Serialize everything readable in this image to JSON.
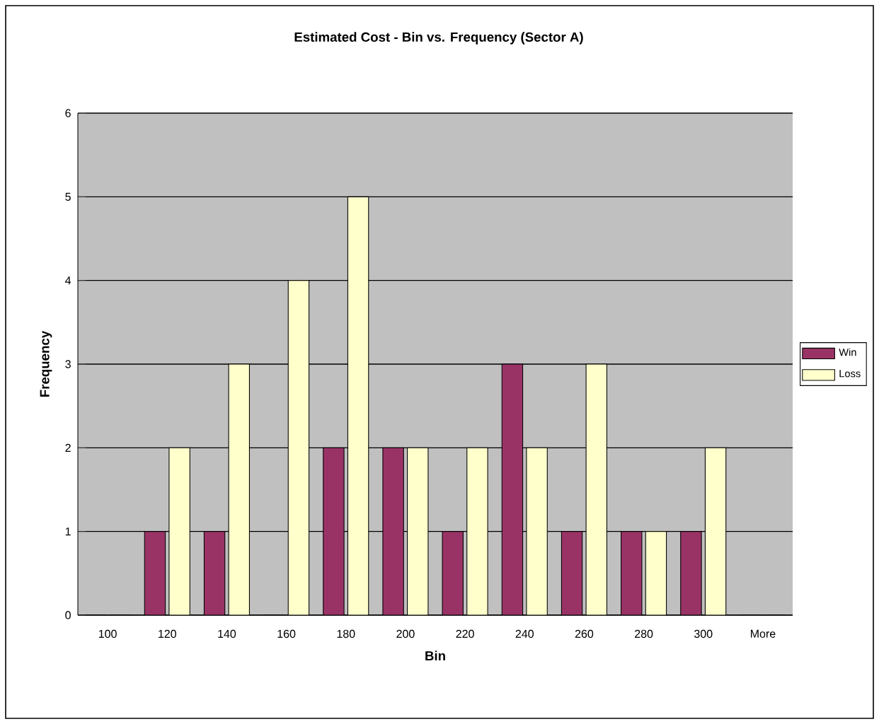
{
  "chart_data": {
    "type": "bar",
    "title": "Estimated Cost - Bin vs. Frequency (Sector A)",
    "xlabel": "Bin",
    "ylabel": "Frequency",
    "categories": [
      "100",
      "120",
      "140",
      "160",
      "180",
      "200",
      "220",
      "240",
      "260",
      "280",
      "300",
      "More"
    ],
    "series": [
      {
        "name": "Win",
        "color": "#993366",
        "values": [
          0,
          1,
          1,
          0,
          2,
          2,
          1,
          3,
          1,
          1,
          1,
          0
        ]
      },
      {
        "name": "Loss",
        "color": "#ffffcc",
        "values": [
          0,
          2,
          3,
          4,
          5,
          2,
          2,
          2,
          3,
          1,
          2,
          0
        ]
      }
    ],
    "ylim": [
      0,
      6
    ],
    "yticks": [
      0,
      1,
      2,
      3,
      4,
      5,
      6
    ],
    "grid": "y",
    "legend": "right"
  }
}
